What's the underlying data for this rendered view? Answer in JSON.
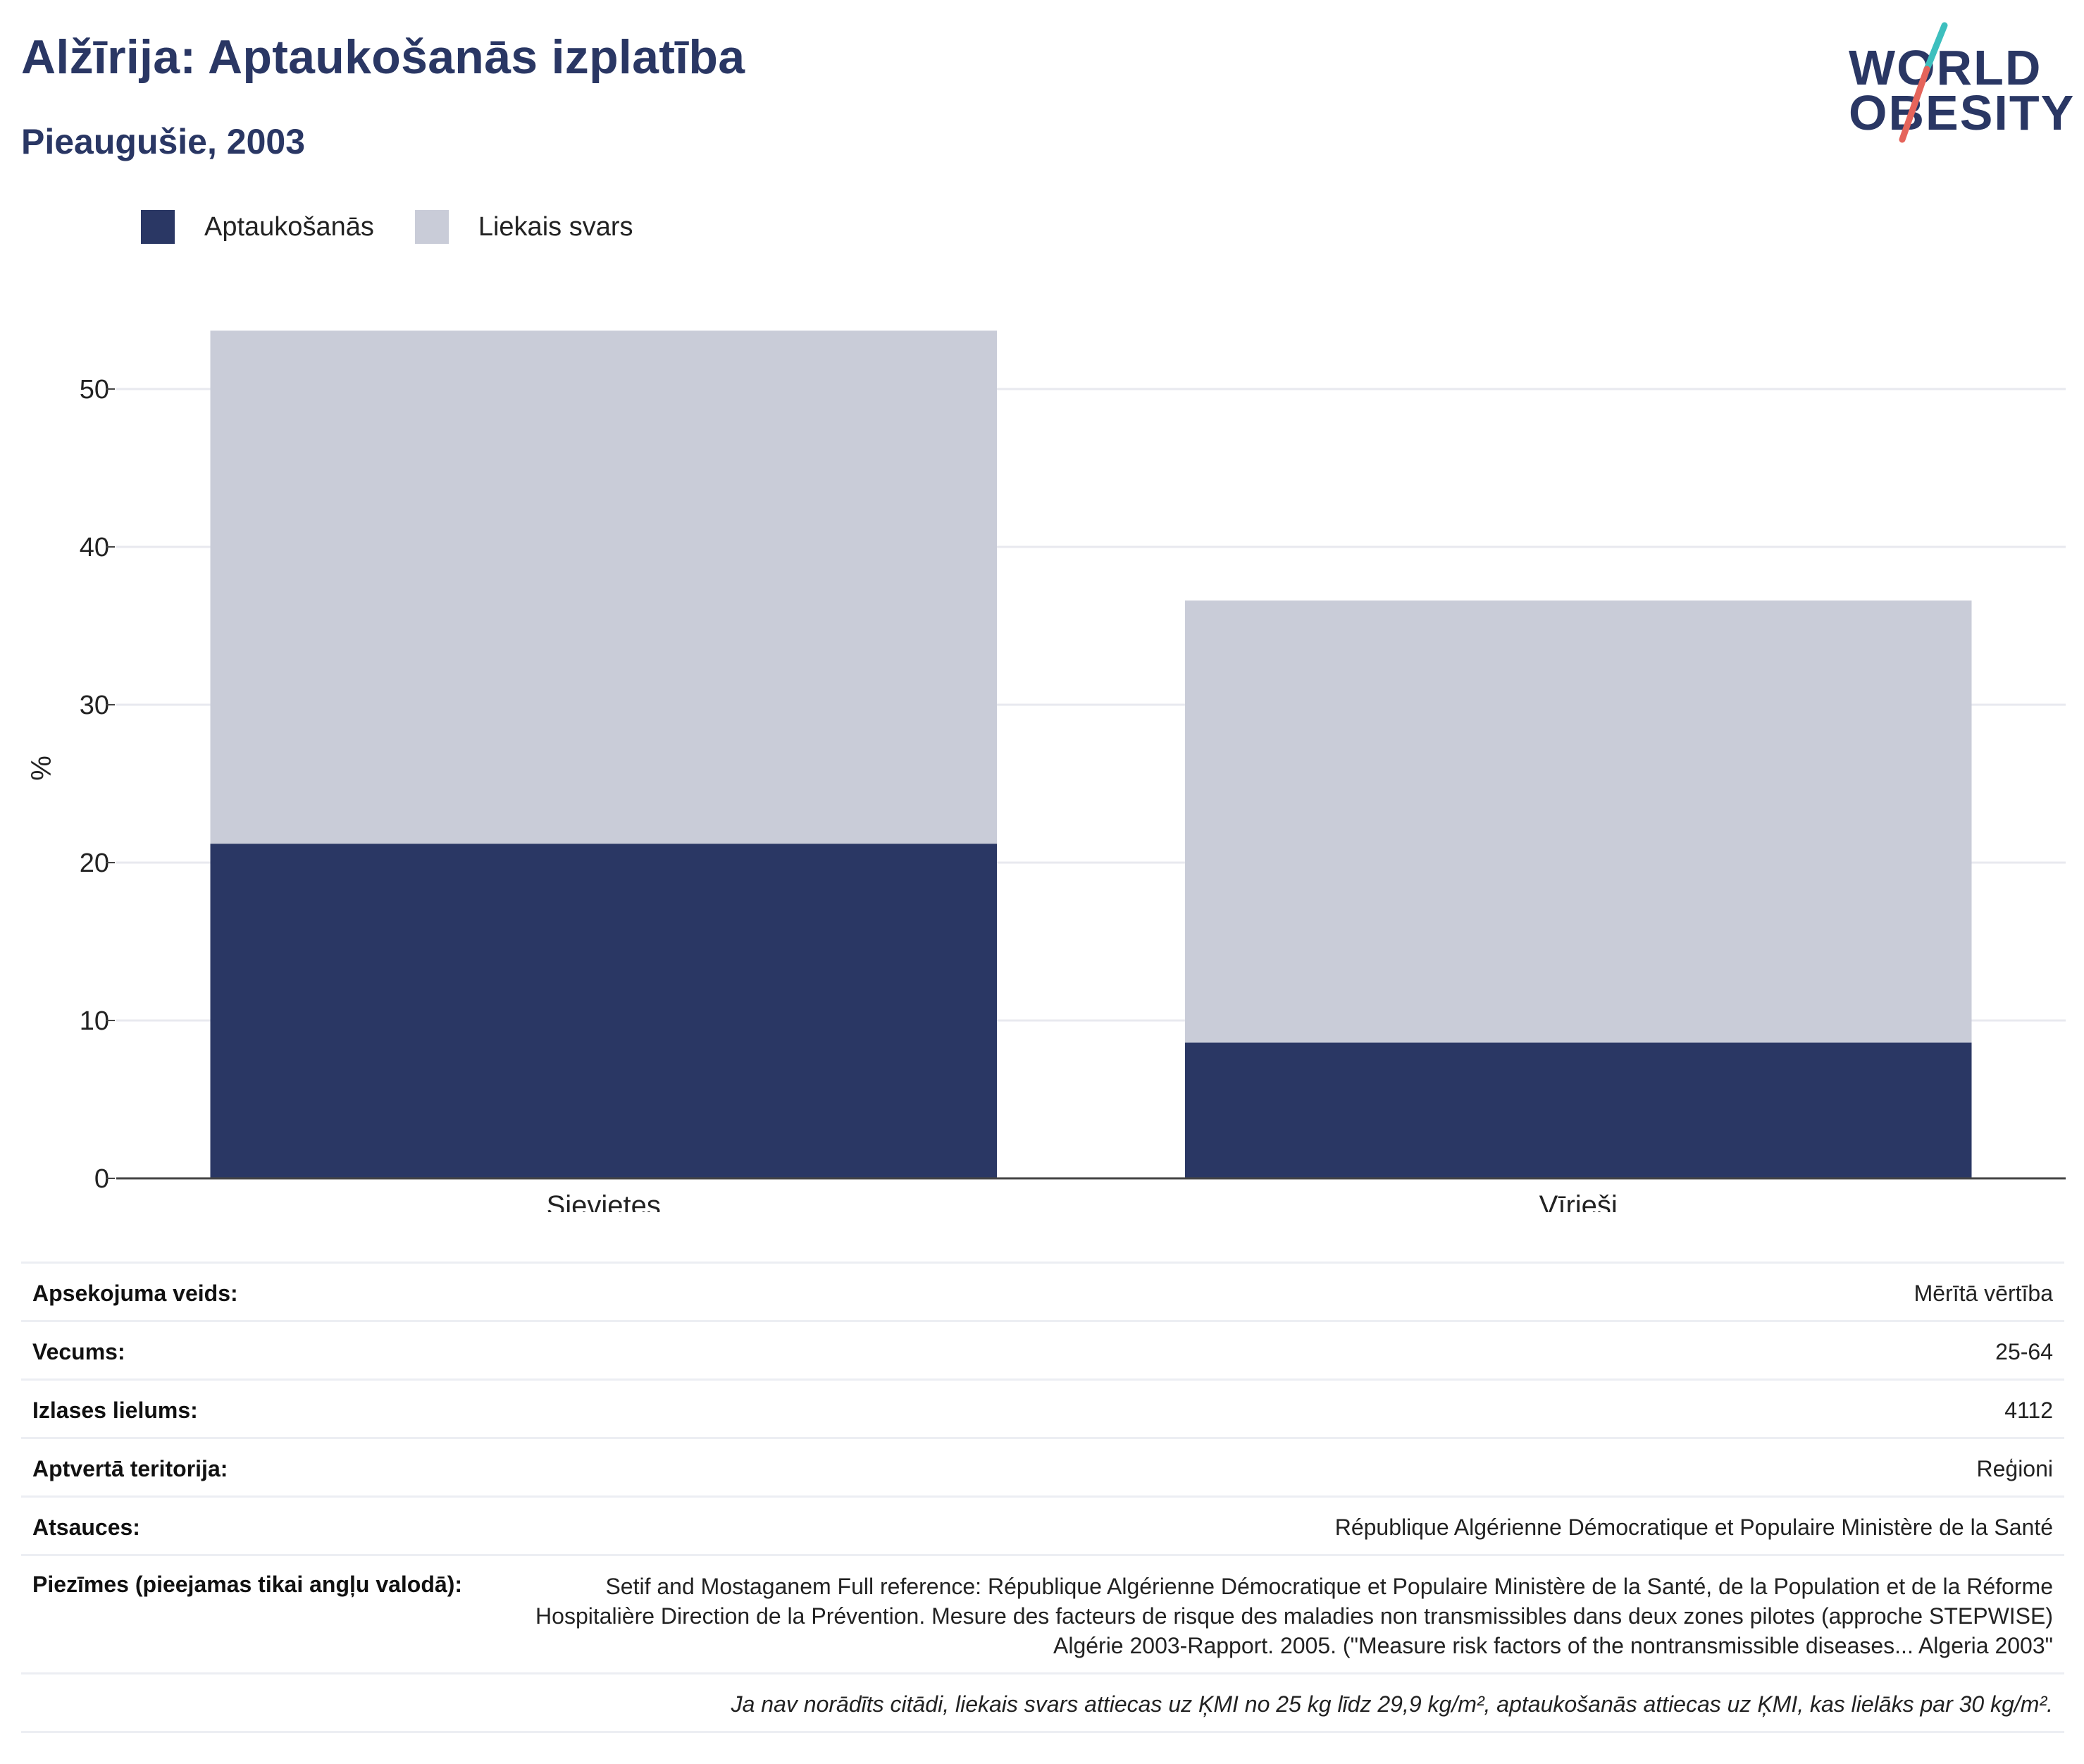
{
  "header": {
    "title": "Alžīrija: Aptaukošanās izplatība",
    "subtitle": "Pieaugušie, 2003"
  },
  "logo": {
    "line1": "WORLD",
    "line2": "OBESITY",
    "colors": [
      "#2a3764",
      "#3dbfbe",
      "#e5645b"
    ]
  },
  "legend": [
    {
      "label": "Aptaukošanās",
      "color": "#2a3764"
    },
    {
      "label": "Liekais svars",
      "color": "#c9ccd8"
    }
  ],
  "chart_data": {
    "type": "bar",
    "stacked": true,
    "categories": [
      "Sievietes",
      "Vīrieši"
    ],
    "series": [
      {
        "name": "Aptaukošanās",
        "values": [
          21.2,
          8.6
        ],
        "color": "#2a3764"
      },
      {
        "name": "Liekais svars",
        "values": [
          32.5,
          28.0
        ],
        "color": "#c9ccd8"
      }
    ],
    "ylabel": "%",
    "ylim": [
      0,
      55
    ],
    "yticks": [
      0,
      10,
      20,
      30,
      40,
      50
    ],
    "grid": true
  },
  "table": {
    "rows": [
      {
        "key": "Apsekojuma veids:",
        "value": "Mērītā vērtība"
      },
      {
        "key": "Vecums:",
        "value": "25-64"
      },
      {
        "key": "Izlases lielums:",
        "value": "4112"
      },
      {
        "key": "Aptvertā teritorija:",
        "value": "Reģioni"
      },
      {
        "key": "Atsauces:",
        "value": "République Algérienne Démocratique et Populaire Ministère de la Santé"
      },
      {
        "key": "Piezīmes (pieejamas tikai angļu valodā):",
        "value": "Setif and Mostaganem Full reference: République Algérienne Démocratique et Populaire Ministère de la Santé, de la Population et de la Réforme Hospitalière Direction de la Prévention. Mesure des facteurs de risque des maladies non transmissibles dans deux zones pilotes (approche STEPWISE) Algérie 2003-Rapport. 2005. (\"Measure risk factors of the nontransmissible diseases... Algeria 2003\""
      }
    ],
    "footnote": "Ja nav norādīts citādi, liekais svars attiecas uz ĶMI no 25 kg līdz 29,9 kg/m², aptaukošanās attiecas uz ĶMI, kas lielāks par 30 kg/m²."
  }
}
